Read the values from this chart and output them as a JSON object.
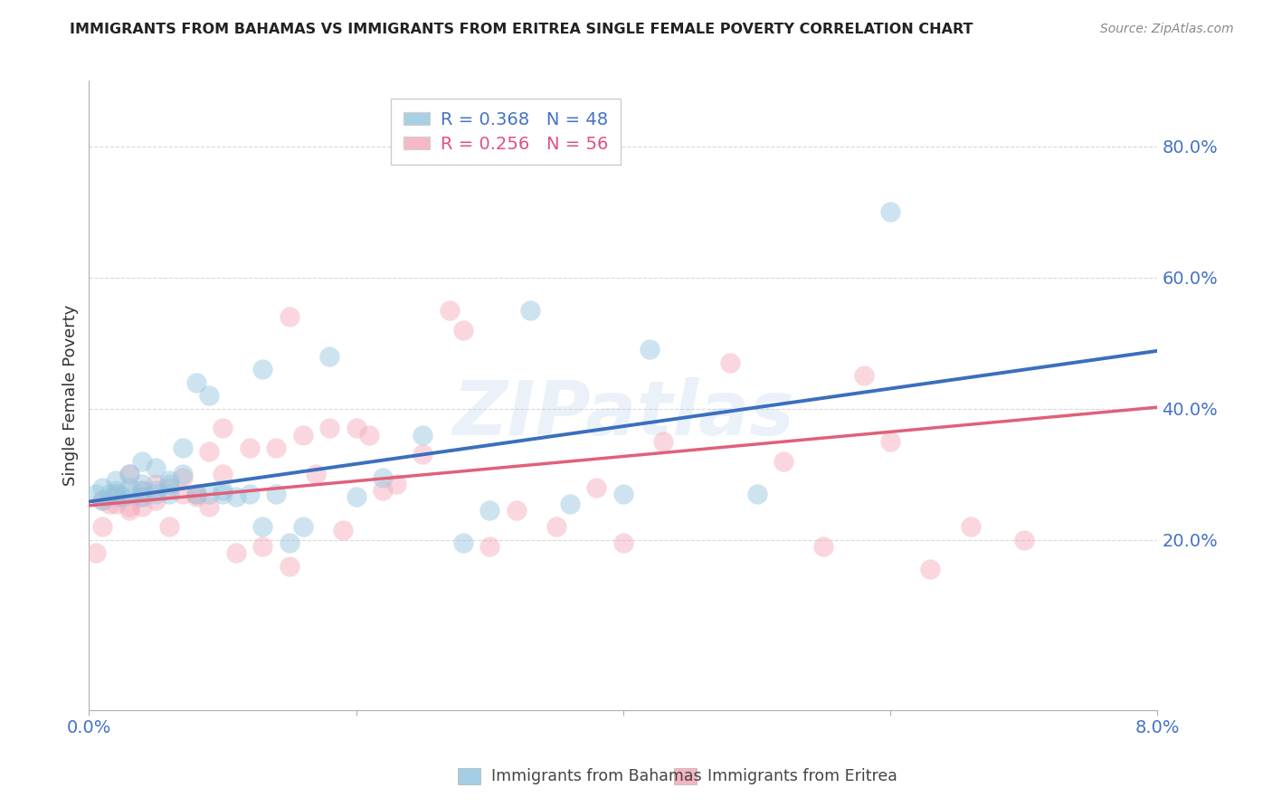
{
  "title": "IMMIGRANTS FROM BAHAMAS VS IMMIGRANTS FROM ERITREA SINGLE FEMALE POVERTY CORRELATION CHART",
  "source": "Source: ZipAtlas.com",
  "ylabel": "Single Female Poverty",
  "legend_label1": "Immigrants from Bahamas",
  "legend_label2": "Immigrants from Eritrea",
  "legend_r1": "R = 0.368",
  "legend_n1": "N = 48",
  "legend_r2": "R = 0.256",
  "legend_n2": "N = 56",
  "blue_color": "#92c5de",
  "pink_color": "#f4a7b9",
  "blue_trend_color": "#3a6fbd",
  "pink_trend_color": "#e0607a",
  "xlim": [
    0.0,
    0.08
  ],
  "ylim": [
    -0.06,
    0.9
  ],
  "ytick_vals": [
    0.2,
    0.4,
    0.6,
    0.8
  ],
  "ytick_labels": [
    "20.0%",
    "40.0%",
    "60.0%",
    "80.0%"
  ],
  "xtick_vals": [
    0.0,
    0.02,
    0.04,
    0.06,
    0.08
  ],
  "xtick_labels": [
    "0.0%",
    "",
    "",
    "",
    "8.0%"
  ],
  "bahamas_trendline_x": [
    0.0,
    0.08
  ],
  "bahamas_trendline_y": [
    0.258,
    0.488
  ],
  "eritrea_trendline_x": [
    0.0,
    0.08
  ],
  "eritrea_trendline_y": [
    0.252,
    0.402
  ],
  "bahamas_x": [
    0.0005,
    0.001,
    0.001,
    0.0015,
    0.002,
    0.002,
    0.002,
    0.0025,
    0.003,
    0.003,
    0.003,
    0.004,
    0.004,
    0.004,
    0.004,
    0.005,
    0.005,
    0.005,
    0.006,
    0.006,
    0.006,
    0.007,
    0.007,
    0.008,
    0.008,
    0.009,
    0.009,
    0.01,
    0.01,
    0.011,
    0.012,
    0.013,
    0.013,
    0.014,
    0.015,
    0.016,
    0.018,
    0.02,
    0.022,
    0.025,
    0.028,
    0.03,
    0.033,
    0.036,
    0.04,
    0.042,
    0.05,
    0.06
  ],
  "bahamas_y": [
    0.27,
    0.28,
    0.26,
    0.27,
    0.29,
    0.275,
    0.27,
    0.265,
    0.3,
    0.28,
    0.27,
    0.285,
    0.275,
    0.265,
    0.32,
    0.275,
    0.27,
    0.31,
    0.29,
    0.27,
    0.285,
    0.3,
    0.34,
    0.44,
    0.27,
    0.42,
    0.27,
    0.275,
    0.27,
    0.265,
    0.27,
    0.22,
    0.46,
    0.27,
    0.195,
    0.22,
    0.48,
    0.265,
    0.295,
    0.36,
    0.195,
    0.245,
    0.55,
    0.255,
    0.27,
    0.49,
    0.27,
    0.7
  ],
  "eritrea_x": [
    0.0005,
    0.001,
    0.001,
    0.0015,
    0.002,
    0.002,
    0.002,
    0.003,
    0.003,
    0.003,
    0.004,
    0.004,
    0.004,
    0.005,
    0.005,
    0.006,
    0.006,
    0.007,
    0.007,
    0.008,
    0.008,
    0.009,
    0.009,
    0.01,
    0.01,
    0.011,
    0.012,
    0.013,
    0.014,
    0.015,
    0.015,
    0.016,
    0.017,
    0.018,
    0.019,
    0.02,
    0.021,
    0.022,
    0.023,
    0.025,
    0.027,
    0.028,
    0.03,
    0.032,
    0.035,
    0.038,
    0.04,
    0.043,
    0.048,
    0.052,
    0.055,
    0.058,
    0.06,
    0.063,
    0.066,
    0.07
  ],
  "eritrea_y": [
    0.18,
    0.26,
    0.22,
    0.255,
    0.265,
    0.27,
    0.255,
    0.3,
    0.25,
    0.245,
    0.275,
    0.265,
    0.25,
    0.285,
    0.26,
    0.28,
    0.22,
    0.27,
    0.295,
    0.27,
    0.265,
    0.335,
    0.25,
    0.37,
    0.3,
    0.18,
    0.34,
    0.19,
    0.34,
    0.16,
    0.54,
    0.36,
    0.3,
    0.37,
    0.215,
    0.37,
    0.36,
    0.275,
    0.285,
    0.33,
    0.55,
    0.52,
    0.19,
    0.245,
    0.22,
    0.28,
    0.195,
    0.35,
    0.47,
    0.32,
    0.19,
    0.45,
    0.35,
    0.155,
    0.22,
    0.2
  ]
}
